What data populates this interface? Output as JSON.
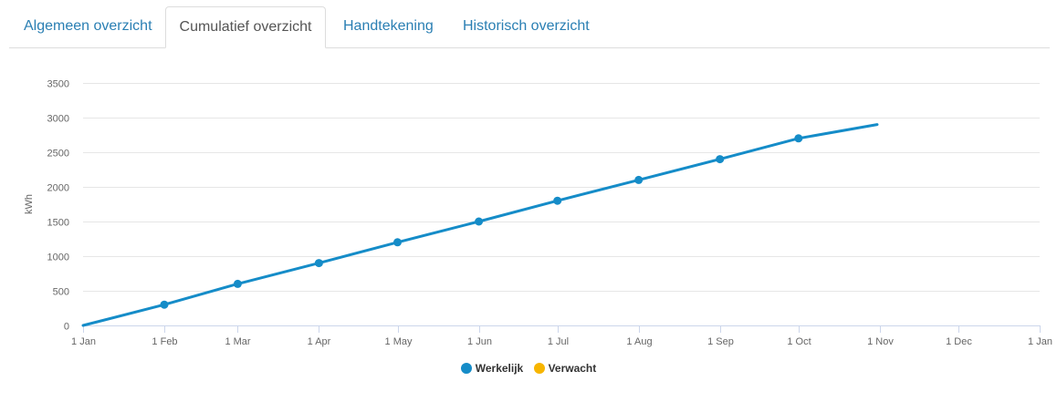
{
  "tabs": [
    {
      "label": "Algemeen overzicht",
      "active": false
    },
    {
      "label": "Cumulatief overzicht",
      "active": true
    },
    {
      "label": "Handtekening",
      "active": false
    },
    {
      "label": "Historisch overzicht",
      "active": false
    }
  ],
  "colors": {
    "tab_link": "#2a7fb3",
    "series_actual": "#158cc8",
    "series_expected": "#f7b500",
    "grid": "#e6e6e6"
  },
  "chart_data": {
    "type": "line",
    "ylabel": "kWh",
    "ylim": [
      0,
      3500
    ],
    "yticks": [
      0,
      500,
      1000,
      1500,
      2000,
      2500,
      3000,
      3500
    ],
    "xticks": [
      "1 Jan",
      "1 Feb",
      "1 Mar",
      "1 Apr",
      "1 May",
      "1 Jun",
      "1 Jul",
      "1 Aug",
      "1 Sep",
      "1 Oct",
      "1 Nov",
      "1 Dec",
      "1 Jan"
    ],
    "grid": true,
    "legend_placement": "bottom-center",
    "series": [
      {
        "name": "Werkelijk",
        "color": "#158cc8",
        "x": [
          "1 Jan",
          "1 Feb",
          "1 Mar",
          "1 Apr",
          "1 May",
          "1 Jun",
          "1 Jul",
          "1 Aug",
          "1 Sep",
          "1 Oct",
          "31 Oct"
        ],
        "values": [
          0,
          300,
          600,
          900,
          1200,
          1500,
          1800,
          2100,
          2400,
          2700,
          2900
        ],
        "markers": [
          false,
          true,
          true,
          true,
          true,
          true,
          true,
          true,
          true,
          true,
          false
        ]
      },
      {
        "name": "Verwacht",
        "color": "#f7b500",
        "x": [],
        "values": [],
        "markers": []
      }
    ]
  }
}
